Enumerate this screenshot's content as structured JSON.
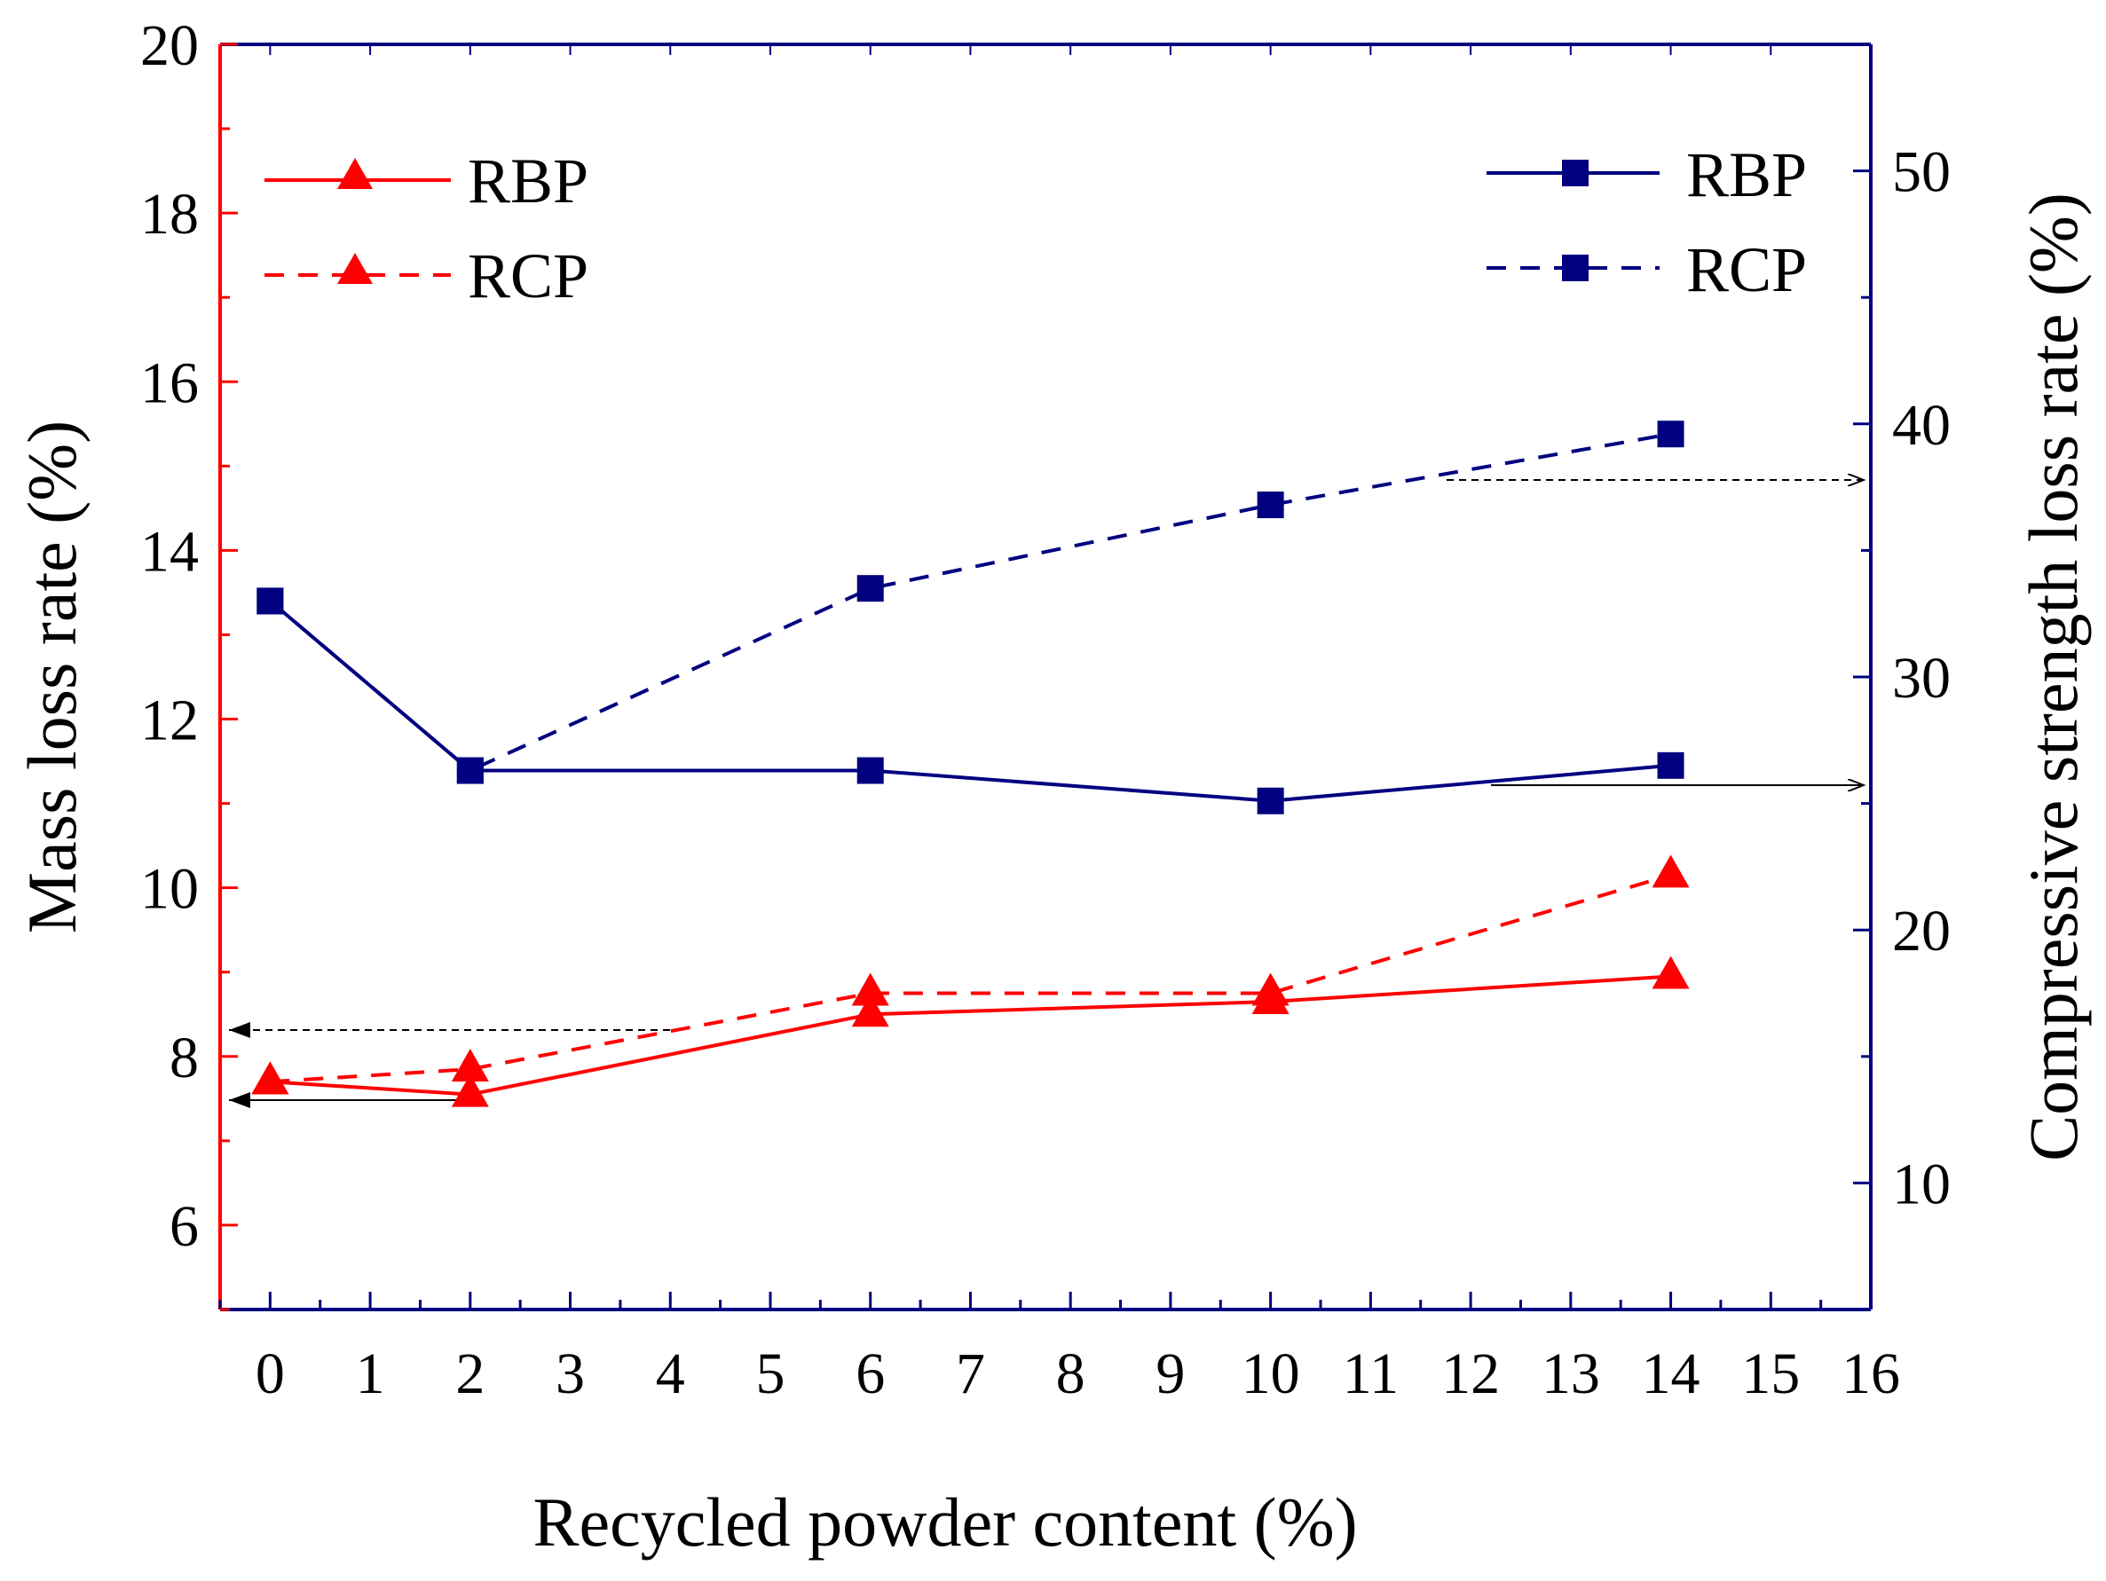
{
  "chart_data": {
    "type": "line",
    "x_axis": {
      "label": "Recycled powder content (%)",
      "range": [
        -0.5,
        16
      ],
      "ticks": [
        0,
        1,
        2,
        3,
        4,
        5,
        6,
        7,
        8,
        9,
        10,
        11,
        12,
        13,
        14,
        15,
        16
      ]
    },
    "y_left": {
      "label": "Mass loss rate (%)",
      "range": [
        5,
        20
      ],
      "ticks": [
        6,
        8,
        10,
        12,
        14,
        16,
        18,
        20
      ],
      "color": "#ff0000"
    },
    "y_right": {
      "label": "Compressive strength loss rate (%)",
      "range": [
        5,
        55
      ],
      "ticks": [
        10,
        20,
        30,
        40,
        50
      ],
      "color": "#000080"
    },
    "series": [
      {
        "name": "RBP",
        "axis": "left",
        "style": "solid",
        "marker": "triangle",
        "color": "#ff0000",
        "x": [
          0,
          2,
          6,
          10,
          14
        ],
        "values": [
          7.7,
          7.55,
          8.5,
          8.65,
          8.95
        ]
      },
      {
        "name": "RCP",
        "axis": "left",
        "style": "dashed",
        "marker": "triangle",
        "color": "#ff0000",
        "x": [
          0,
          2,
          6,
          10,
          14
        ],
        "values": [
          7.7,
          7.85,
          8.75,
          8.75,
          10.15
        ]
      },
      {
        "name": "RBP",
        "axis": "right",
        "style": "solid",
        "marker": "square",
        "color": "#000080",
        "x": [
          0,
          2,
          6,
          10,
          14
        ],
        "values": [
          33.0,
          26.3,
          26.3,
          25.1,
          26.5
        ]
      },
      {
        "name": "RCP",
        "axis": "right",
        "style": "dashed",
        "marker": "square",
        "color": "#000080",
        "x": [
          0,
          2,
          6,
          10,
          14
        ],
        "values": [
          33.0,
          26.3,
          33.5,
          36.8,
          39.6
        ]
      }
    ],
    "legends": [
      {
        "position": "top-left",
        "entries": [
          "RBP",
          "RCP"
        ]
      },
      {
        "position": "top-right",
        "entries": [
          "RBP",
          "RCP"
        ]
      }
    ]
  }
}
